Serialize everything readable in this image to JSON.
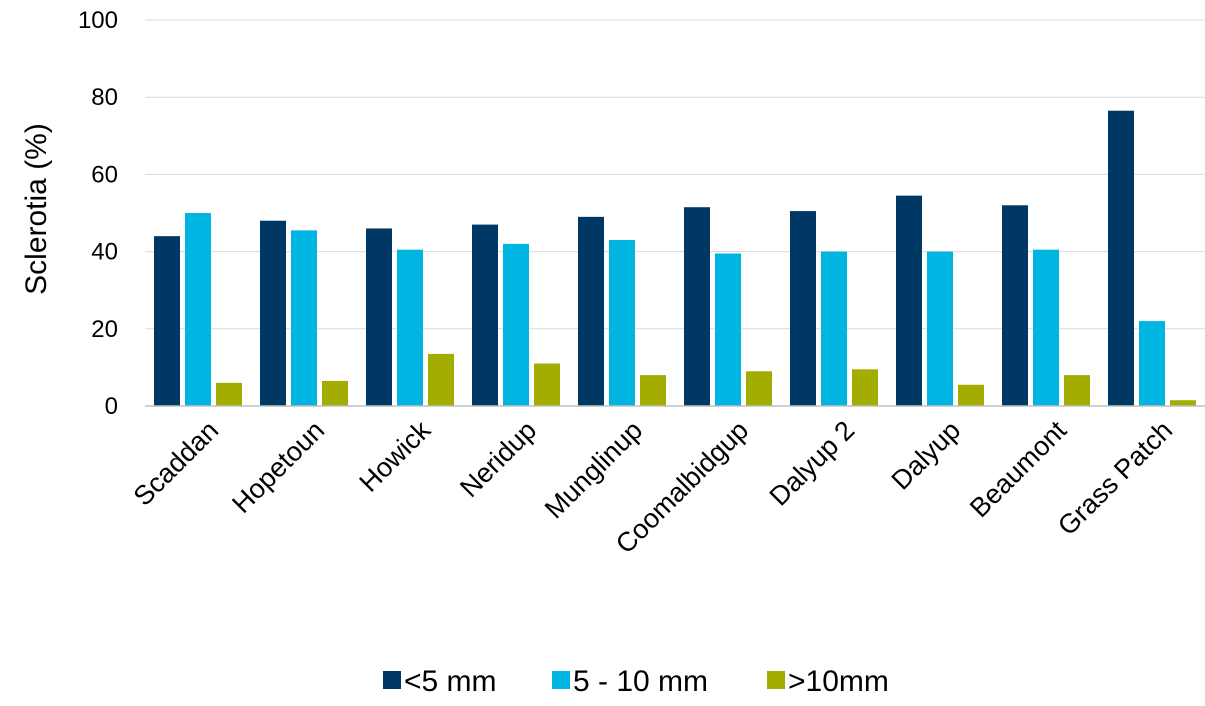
{
  "chart_data": {
    "type": "bar",
    "title": "",
    "xlabel": "",
    "ylabel": "Sclerotia (%)",
    "ylim": [
      0,
      100
    ],
    "yticks": [
      0,
      20,
      40,
      60,
      80,
      100
    ],
    "grid": true,
    "legend_position": "bottom",
    "categories": [
      "Scaddan",
      "Hopetoun",
      "Howick",
      "Neridup",
      "Munglinup",
      "Coomalbidgup",
      "Dalyup 2",
      "Dalyup",
      "Beaumont",
      "Grass Patch"
    ],
    "series": [
      {
        "name": "<5 mm",
        "color": "#003865",
        "values": [
          44,
          48,
          46,
          47,
          49,
          51.5,
          50.5,
          54.5,
          52,
          76.5
        ]
      },
      {
        "name": "5 - 10 mm",
        "color": "#00B5E2",
        "values": [
          50,
          45.5,
          40.5,
          42,
          43,
          39.5,
          40,
          40,
          40.5,
          22
        ]
      },
      {
        "name": ">10mm",
        "color": "#A2AD00",
        "values": [
          6,
          6.5,
          13.5,
          11,
          8,
          9,
          9.5,
          5.5,
          8,
          1.5
        ]
      }
    ]
  }
}
